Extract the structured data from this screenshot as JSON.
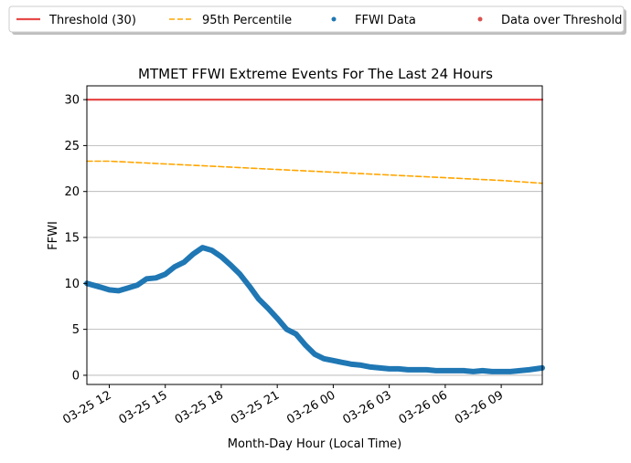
{
  "chart_data": {
    "type": "line",
    "title": "MTMET FFWI Extreme Events For The Last 24 Hours",
    "xlabel": "Month-Day Hour (Local Time)",
    "ylabel": "FFWI",
    "x_ticks": [
      "03-25 12",
      "03-25 15",
      "03-25 18",
      "03-25 21",
      "03-26 00",
      "03-26 03",
      "03-26 06",
      "03-26 09"
    ],
    "x_tick_hours": [
      12,
      15,
      18,
      21,
      24,
      27,
      30,
      33
    ],
    "xlim": [
      10.8,
      35.2
    ],
    "y_ticks": [
      "0",
      "5",
      "10",
      "15",
      "20",
      "25",
      "30"
    ],
    "y_tick_values": [
      0,
      5,
      10,
      15,
      20,
      25,
      30
    ],
    "ylim": [
      -1,
      31.5
    ],
    "grid": "horizontal",
    "legend": {
      "placement": "top, outside plot",
      "entries": [
        {
          "label": "Threshold (30)",
          "kind": "line",
          "color": "#e84a4a"
        },
        {
          "label": "95th Percentile",
          "kind": "dashed",
          "color": "#ffa500"
        },
        {
          "label": "FFWI Data",
          "kind": "marker",
          "color": "#1f77b4"
        },
        {
          "label": "Data over Threshold",
          "kind": "marker",
          "color": "#d9534f"
        }
      ]
    },
    "series": [
      {
        "name": "Threshold (30)",
        "color": "#e84a4a",
        "style": "solid",
        "x": [
          10.8,
          35.2
        ],
        "y": [
          30,
          30
        ]
      },
      {
        "name": "95th Percentile",
        "color": "#ffa500",
        "style": "dashed",
        "x": [
          10.8,
          12,
          15,
          18,
          21,
          24,
          27,
          30,
          33,
          35.2
        ],
        "y": [
          23.3,
          23.3,
          23.0,
          22.7,
          22.4,
          22.1,
          21.8,
          21.5,
          21.2,
          20.9
        ]
      },
      {
        "name": "FFWI Data",
        "color": "#1f77b4",
        "style": "thick",
        "x": [
          10.8,
          11.5,
          12,
          12.5,
          13,
          13.5,
          14,
          14.5,
          15,
          15.5,
          16,
          16.5,
          17,
          17.5,
          18,
          18.5,
          19,
          19.5,
          20,
          20.5,
          21,
          21.5,
          22,
          22.5,
          23,
          23.5,
          24,
          24.5,
          25,
          25.5,
          26,
          26.5,
          27,
          27.5,
          28,
          28.5,
          29,
          29.5,
          30,
          30.5,
          31,
          31.5,
          32,
          32.5,
          33,
          33.5,
          34,
          34.5,
          35.2
        ],
        "y": [
          10.0,
          9.6,
          9.3,
          9.2,
          9.5,
          9.8,
          10.5,
          10.6,
          11.0,
          11.8,
          12.3,
          13.2,
          13.9,
          13.6,
          12.9,
          12.0,
          11.0,
          9.7,
          8.3,
          7.3,
          6.2,
          5.0,
          4.5,
          3.3,
          2.3,
          1.8,
          1.6,
          1.4,
          1.2,
          1.1,
          0.9,
          0.8,
          0.7,
          0.7,
          0.6,
          0.6,
          0.6,
          0.5,
          0.5,
          0.5,
          0.5,
          0.4,
          0.5,
          0.4,
          0.4,
          0.4,
          0.5,
          0.6,
          0.8
        ]
      },
      {
        "name": "Data over Threshold",
        "color": "#d9534f",
        "style": "marker",
        "x": [],
        "y": []
      }
    ]
  }
}
